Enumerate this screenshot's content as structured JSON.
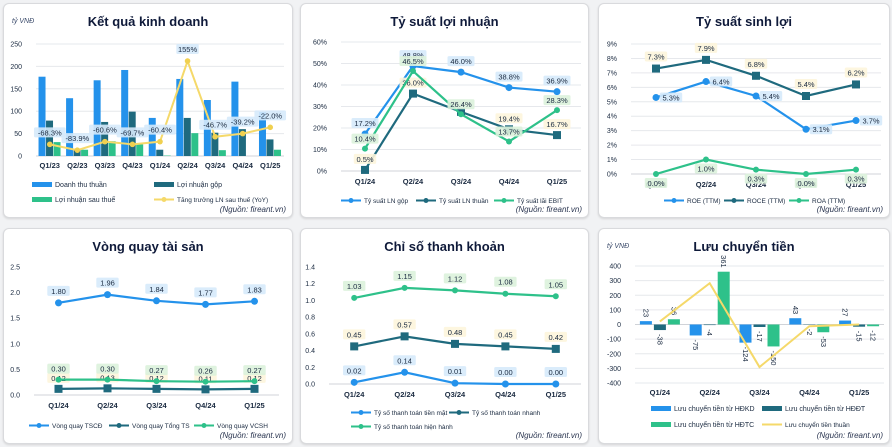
{
  "colors": {
    "blue": "#2492eb",
    "teal": "#1f6a7e",
    "green": "#2ec18a",
    "yellow": "#f5d96a",
    "label_blue_bg": "#d6eafb",
    "label_green_bg": "#dcf2dc",
    "label_yellow_bg": "#fdf5dc"
  },
  "source": "(Nguồn: fireant.vn)",
  "unit": "tỷ VNĐ",
  "chart_data": [
    {
      "id": "kqkd",
      "type": "bar",
      "title": "Kết quả kinh doanh",
      "ylabel": "tỷ VNĐ",
      "ylim": [
        0,
        250
      ],
      "yticks": [
        0,
        50,
        100,
        150,
        200,
        250
      ],
      "grid": true,
      "legend": "bottom",
      "categories": [
        "Q1/23",
        "Q2/23",
        "Q3/23",
        "Q4/23",
        "Q1/24",
        "Q2/24",
        "Q3/24",
        "Q4/24",
        "Q1/25"
      ],
      "series": [
        {
          "name": "Doanh thu thuần",
          "kind": "bar",
          "color": "blue",
          "values": [
            177,
            129,
            169,
            192,
            85,
            172,
            125,
            166,
            98
          ]
        },
        {
          "name": "Lợi nhuận gộp",
          "kind": "bar",
          "color": "teal",
          "values": [
            79,
            16,
            76,
            99,
            14,
            85,
            52,
            60,
            37
          ]
        },
        {
          "name": "Lợi nhuận sau thuế",
          "kind": "bar",
          "color": "green",
          "values": [
            31,
            14,
            33,
            26,
            1,
            51,
            13,
            0,
            14
          ]
        },
        {
          "name": "Tăng trưởng LN sau thuế (YoY)",
          "kind": "line",
          "color": "yellow",
          "plot_values": [
            26,
            13,
            32,
            26,
            32,
            212,
            43,
            50,
            64
          ],
          "labels": [
            "-68.3%",
            "-83.9%",
            "-60.6%",
            "-69.7%",
            "-60.4%",
            "155%",
            "-46.7%",
            "-39.2%",
            "-22.0%"
          ]
        }
      ]
    },
    {
      "id": "tsln",
      "type": "line",
      "title": "Tỷ suất lợi nhuận",
      "ylim": [
        0,
        60
      ],
      "yticks": [
        "0%",
        "10%",
        "20%",
        "30%",
        "40%",
        "50%",
        "60%"
      ],
      "grid": true,
      "legend": "bottom",
      "categories": [
        "Q1/24",
        "Q2/24",
        "Q3/24",
        "Q4/24",
        "Q1/25"
      ],
      "series": [
        {
          "name": "Tỷ suất LN gộp",
          "color": "blue",
          "marker": "circle",
          "values": [
            17.2,
            48.8,
            46.0,
            38.8,
            36.9
          ],
          "labels": [
            "17.2%",
            "48.8%",
            "46.0%",
            "38.8%",
            "36.9%"
          ]
        },
        {
          "name": "Tỷ suất LN thuần",
          "color": "teal",
          "marker": "square",
          "values": [
            0.5,
            36.0,
            27.5,
            19.4,
            16.7
          ],
          "labels": [
            "0.5%",
            "36.0%",
            "",
            "19.4%",
            "16.7%"
          ]
        },
        {
          "name": "Tỷ suất lãi EBIT",
          "color": "green",
          "marker": "diamond",
          "values": [
            10.4,
            46.5,
            26.4,
            13.7,
            28.3
          ],
          "labels": [
            "10.4%",
            "46.5%",
            "26.4%",
            "13.7%",
            "28.3%"
          ]
        }
      ]
    },
    {
      "id": "tssl",
      "type": "line",
      "title": "Tỷ suất sinh lợi",
      "ylim": [
        0,
        9
      ],
      "yticks": [
        "0%",
        "1%",
        "2%",
        "3%",
        "4%",
        "5%",
        "6%",
        "7%",
        "8%",
        "9%"
      ],
      "grid": true,
      "legend": "bottom",
      "categories": [
        "Q1/24",
        "Q2/24",
        "Q3/24",
        "Q4/24",
        "Q1/25"
      ],
      "series": [
        {
          "name": "ROE (TTM)",
          "color": "blue",
          "marker": "circle",
          "values": [
            5.3,
            6.4,
            5.4,
            3.1,
            3.7
          ],
          "labels": [
            "5.3%",
            "6.4%",
            "5.4%",
            "3.1%",
            "3.7%"
          ]
        },
        {
          "name": "ROCE (TTM)",
          "color": "teal",
          "marker": "square",
          "values": [
            7.3,
            7.9,
            6.8,
            5.4,
            6.2
          ],
          "labels": [
            "7.3%",
            "7.9%",
            "6.8%",
            "5.4%",
            "6.2%"
          ]
        },
        {
          "name": "ROA (TTM)",
          "color": "green",
          "marker": "diamond",
          "values": [
            0.0,
            1.0,
            0.3,
            0.0,
            0.3
          ],
          "labels": [
            "0.0%",
            "1.0%",
            "0.3%",
            "0.0%",
            "0.3%"
          ]
        }
      ]
    },
    {
      "id": "vqts",
      "type": "line",
      "title": "Vòng quay tài sản",
      "ylim": [
        0,
        2.5
      ],
      "yticks": [
        "0.0",
        "0.5",
        "1.0",
        "1.5",
        "2.0",
        "2.5"
      ],
      "grid": false,
      "legend": "bottom",
      "categories": [
        "Q1/24",
        "Q2/24",
        "Q3/24",
        "Q4/24",
        "Q1/25"
      ],
      "series": [
        {
          "name": "Vòng quay TSCĐ",
          "color": "blue",
          "marker": "circle",
          "values": [
            1.8,
            1.96,
            1.84,
            1.77,
            1.83
          ],
          "labels": [
            "1.80",
            "1.96",
            "1.84",
            "1.77",
            "1.83"
          ]
        },
        {
          "name": "Vòng quay Tổng TS",
          "color": "teal",
          "marker": "square",
          "values": [
            0.12,
            0.13,
            0.12,
            0.11,
            0.12
          ],
          "labels": [
            "0.12",
            "0.13",
            "0.12",
            "0.11",
            "0.12"
          ]
        },
        {
          "name": "Vòng quay VCSH",
          "color": "green",
          "marker": "diamond",
          "values": [
            0.3,
            0.3,
            0.27,
            0.26,
            0.27
          ],
          "labels": [
            "0.30",
            "0.30",
            "0.27",
            "0.26",
            "0.27"
          ]
        }
      ]
    },
    {
      "id": "cstk",
      "type": "line",
      "title": "Chỉ số thanh khoản",
      "ylim": [
        0,
        1.4
      ],
      "yticks": [
        "0.0",
        "0.2",
        "0.4",
        "0.6",
        "0.8",
        "1.0",
        "1.2",
        "1.4"
      ],
      "grid": false,
      "legend": "bottom",
      "categories": [
        "Q1/24",
        "Q2/24",
        "Q3/24",
        "Q4/24",
        "Q1/25"
      ],
      "series": [
        {
          "name": "Tỷ số thanh toán tiền mặt",
          "color": "blue",
          "marker": "circle",
          "values": [
            0.02,
            0.14,
            0.01,
            0.0,
            0.0
          ],
          "labels": [
            "0.02",
            "0.14",
            "0.01",
            "0.00",
            "0.00"
          ]
        },
        {
          "name": "Tỷ số thanh toán nhanh",
          "color": "teal",
          "marker": "square",
          "values": [
            0.45,
            0.57,
            0.48,
            0.45,
            0.42
          ],
          "labels": [
            "0.45",
            "0.57",
            "0.48",
            "0.45",
            "0.42"
          ]
        },
        {
          "name": "Tỷ số thanh toán hiện hành",
          "color": "green",
          "marker": "diamond",
          "values": [
            1.03,
            1.15,
            1.12,
            1.08,
            1.05
          ],
          "labels": [
            "1.03",
            "1.15",
            "1.12",
            "1.08",
            "1.05"
          ]
        }
      ]
    },
    {
      "id": "lct",
      "type": "bar",
      "title": "Lưu chuyển tiền",
      "ylabel": "tỷ VNĐ",
      "ylim": [
        -400,
        400
      ],
      "yticks": [
        -400,
        -300,
        -200,
        -100,
        0,
        100,
        200,
        300,
        400
      ],
      "grid": true,
      "legend": "bottom",
      "categories": [
        "Q1/24",
        "Q2/24",
        "Q3/24",
        "Q4/24",
        "Q1/25"
      ],
      "series": [
        {
          "name": "Lưu chuyển tiền từ HĐKD",
          "kind": "bar",
          "color": "blue",
          "values": [
            23,
            -75,
            -124,
            43,
            27
          ]
        },
        {
          "name": "Lưu chuyển tiền từ HĐĐT",
          "kind": "bar",
          "color": "teal",
          "values": [
            -38,
            -4,
            -17,
            -2,
            -15
          ]
        },
        {
          "name": "Lưu chuyển tiền từ HĐTC",
          "kind": "bar",
          "color": "green",
          "values": [
            36,
            361,
            -150,
            -53,
            -12
          ]
        },
        {
          "name": "Lưu chuyển tiền thuần",
          "kind": "line",
          "color": "yellow",
          "values": [
            21,
            282,
            -291,
            -12,
            0
          ]
        }
      ]
    }
  ]
}
